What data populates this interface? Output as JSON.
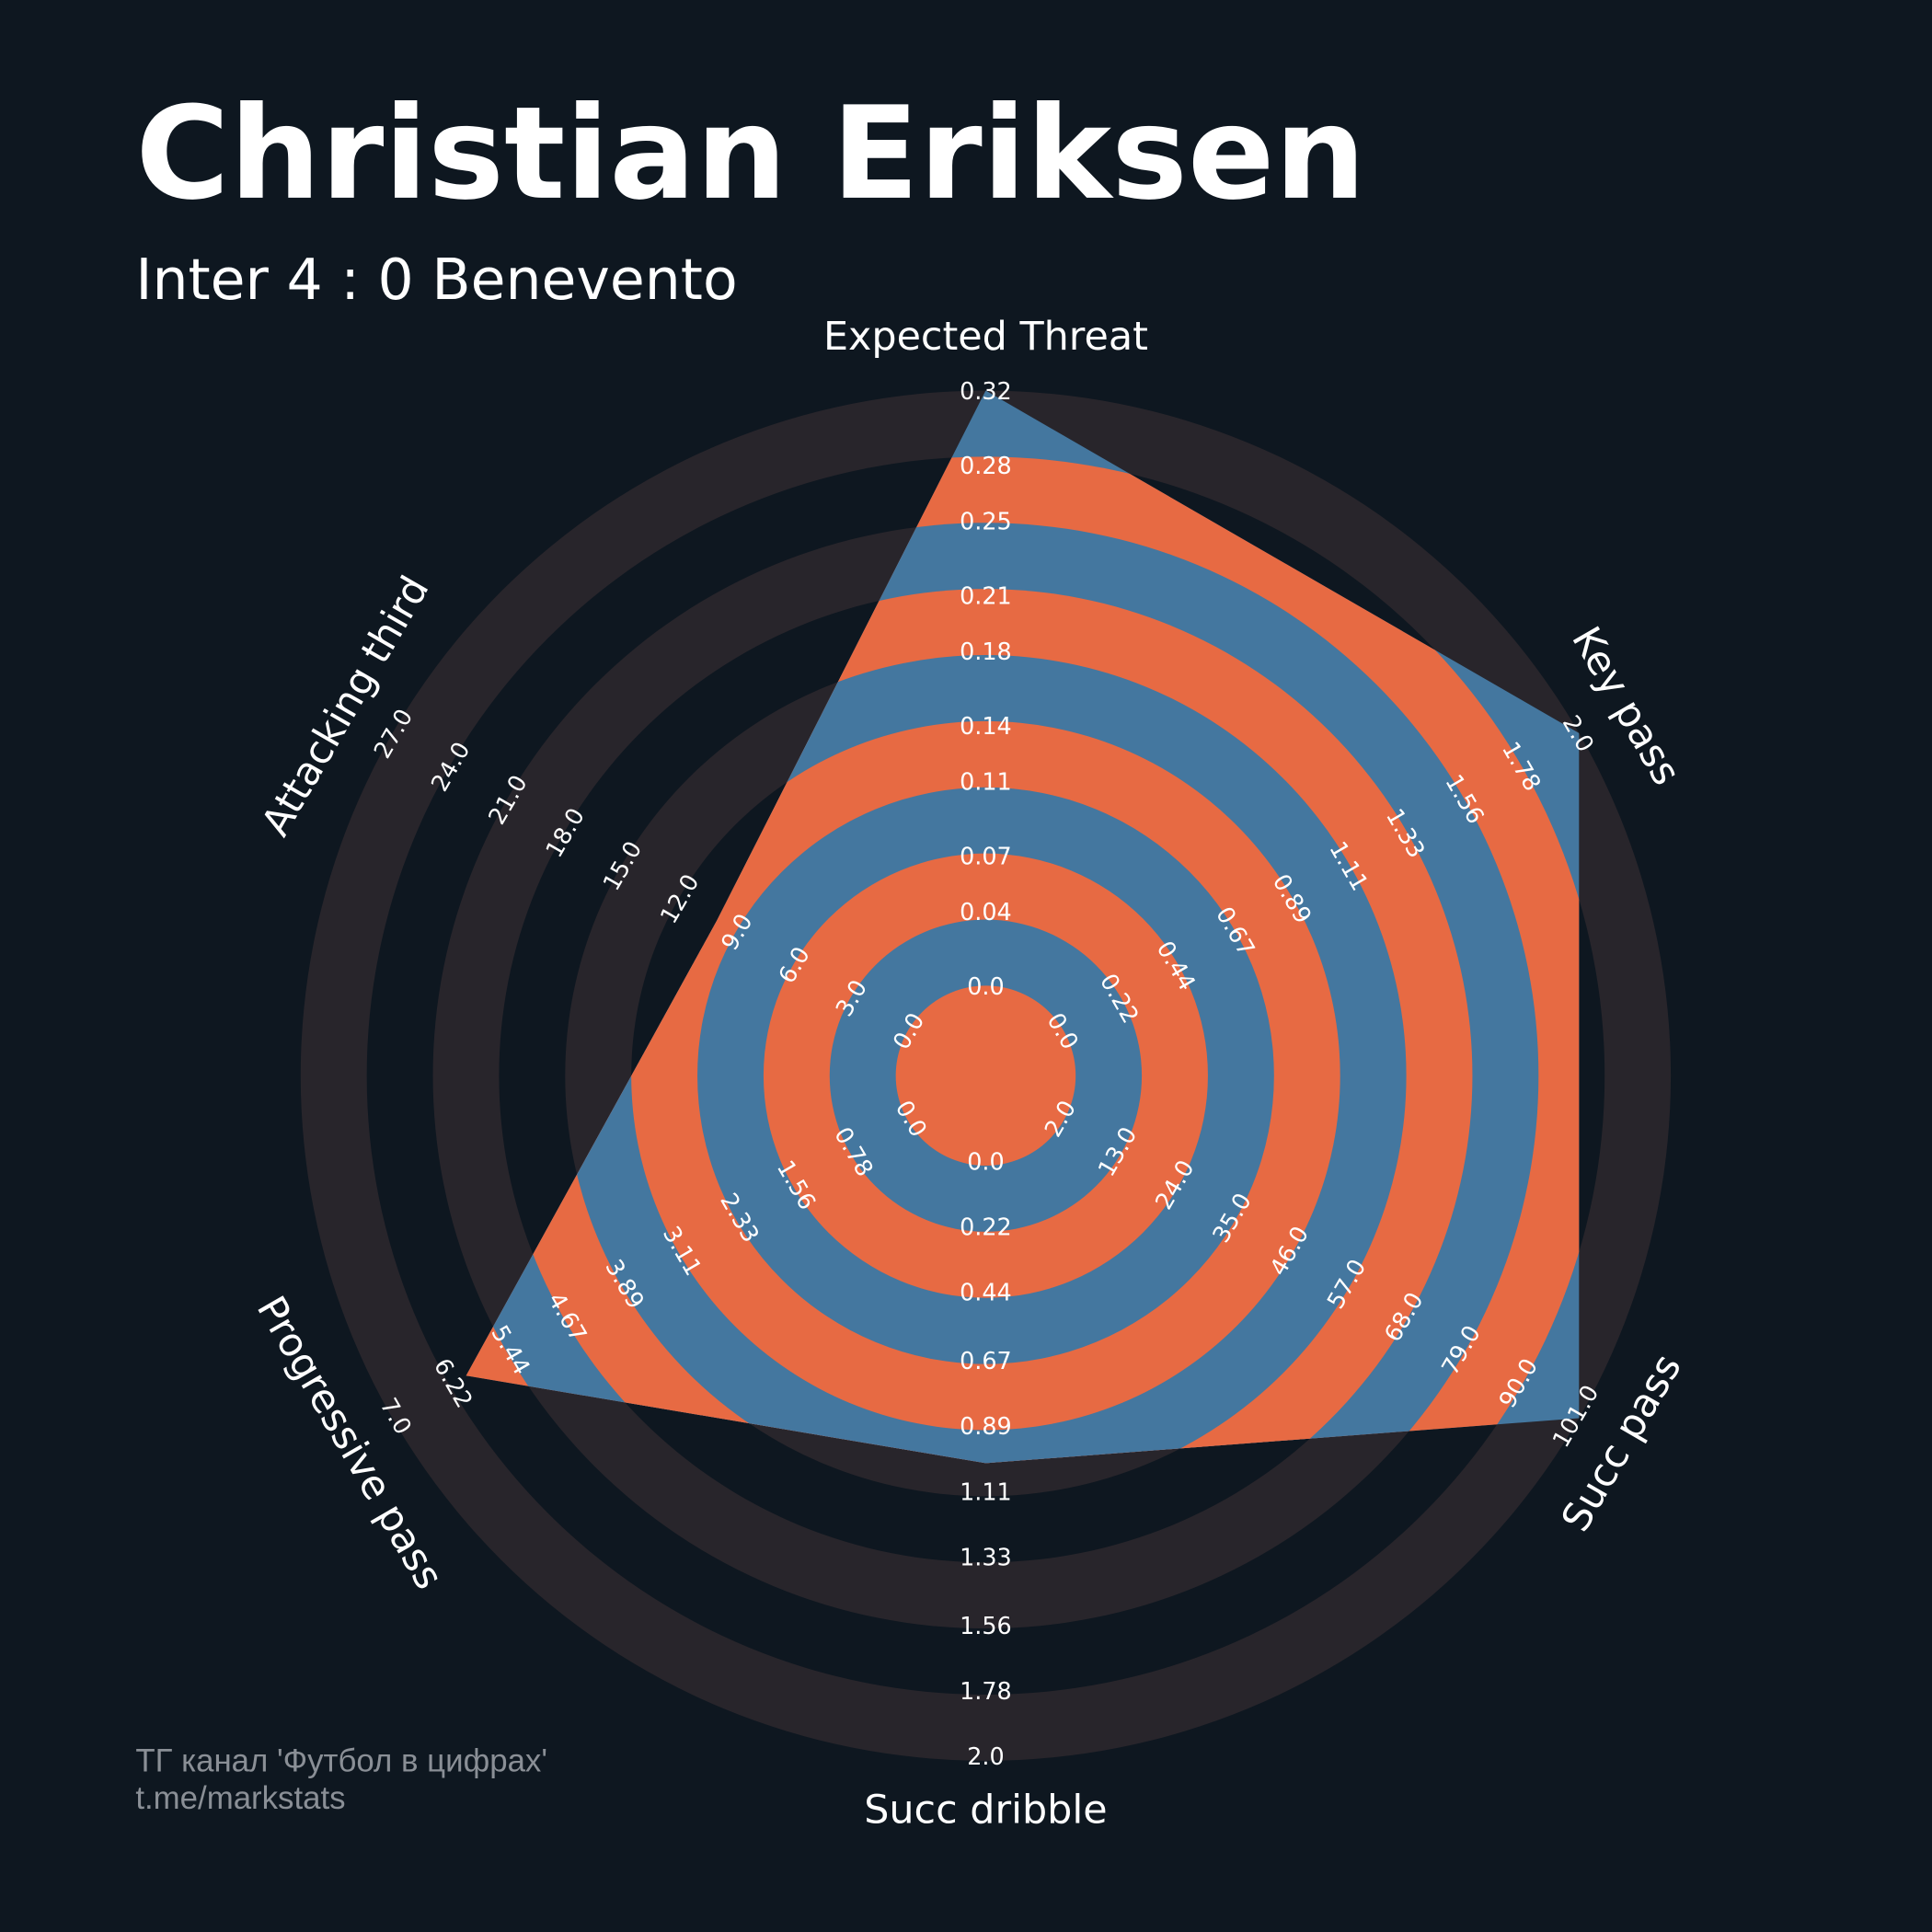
{
  "chart_data": {
    "type": "radar",
    "title": "Christian Eriksen",
    "subtitle": "Inter 4 : 0 Benevento",
    "axes": [
      {
        "name": "Expected Threat",
        "lim": [
          0,
          0.32
        ],
        "ticks": [
          {
            "value": 0,
            "label": "0.0"
          },
          0.04,
          0.07,
          0.11,
          0.14,
          0.18,
          0.21,
          0.25,
          0.28,
          0.32
        ]
      },
      {
        "name": "Key pass",
        "lim": [
          0,
          2
        ],
        "ticks": [
          {
            "value": 0,
            "label": "0.0"
          },
          0.22,
          0.44,
          0.67,
          0.89,
          1.11,
          1.33,
          1.56,
          1.78,
          {
            "value": 2,
            "label": "2.0"
          }
        ]
      },
      {
        "name": "Succ pass",
        "lim": [
          2,
          101
        ],
        "ticks": [
          {
            "value": 2,
            "label": "2.0"
          },
          {
            "value": 13,
            "label": "13.0"
          },
          {
            "value": 24,
            "label": "24.0"
          },
          {
            "value": 35,
            "label": "35.0"
          },
          {
            "value": 46,
            "label": "46.0"
          },
          {
            "value": 57,
            "label": "57.0"
          },
          {
            "value": 68,
            "label": "68.0"
          },
          {
            "value": 79,
            "label": "79.0"
          },
          {
            "value": 90,
            "label": "90.0"
          },
          {
            "value": 101,
            "label": "101.0"
          }
        ]
      },
      {
        "name": "Succ dribble",
        "lim": [
          0,
          2
        ],
        "ticks": [
          {
            "value": 0,
            "label": "0.0"
          },
          0.22,
          0.44,
          0.67,
          0.89,
          1.11,
          1.33,
          1.56,
          1.78,
          {
            "value": 2,
            "label": "2.0"
          }
        ]
      },
      {
        "name": "Progressive pass",
        "lim": [
          0,
          7
        ],
        "ticks": [
          {
            "value": 0,
            "label": "0.0"
          },
          0.78,
          1.56,
          2.33,
          3.11,
          3.89,
          4.67,
          5.44,
          6.22,
          {
            "value": 7,
            "label": "7.0"
          }
        ]
      },
      {
        "name": "Attacking third",
        "lim": [
          0,
          27
        ],
        "ticks": [
          {
            "value": 0,
            "label": "0.0"
          },
          {
            "value": 3,
            "label": "3.0"
          },
          {
            "value": 6,
            "label": "6.0"
          },
          {
            "value": 9,
            "label": "9.0"
          },
          {
            "value": 12,
            "label": "12.0"
          },
          {
            "value": 15,
            "label": "15.0"
          },
          {
            "value": 18,
            "label": "18.0"
          },
          {
            "value": 21,
            "label": "21.0"
          },
          {
            "value": 24,
            "label": "24.0"
          },
          {
            "value": 27,
            "label": "27.0"
          }
        ]
      }
    ],
    "values": [
      0.32,
      2,
      101,
      1,
      6,
      10
    ],
    "inner_colors": [
      "#e76a43",
      "#44779f"
    ],
    "ring_colors": [
      "#0e1720",
      "#28252b"
    ],
    "footer": [
      "ТГ канал 'Футбол в цифрах'",
      "t.me/markstats"
    ]
  }
}
